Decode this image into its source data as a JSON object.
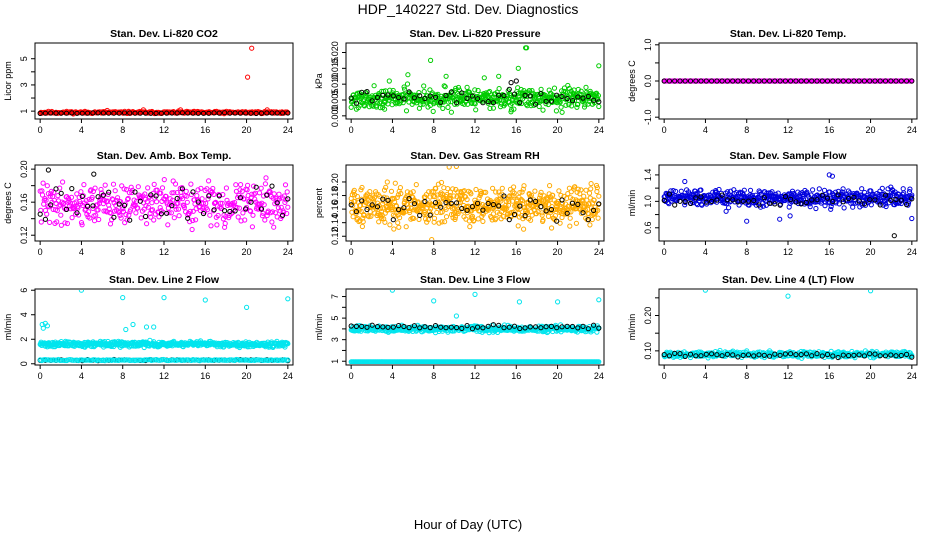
{
  "page": {
    "title": "HDP_140227  Std. Dev. Diagnostics",
    "x_axis_title": "Hour of Day (UTC)"
  },
  "chart_data": [
    {
      "id": "co2",
      "type": "scatter",
      "title": "Stan. Dev. Li-820 CO2",
      "ylabel": "Licor ppm",
      "xlim": [
        -0.5,
        24.5
      ],
      "ylim": [
        0.4,
        6.2
      ],
      "xticks": [
        0,
        4,
        8,
        12,
        16,
        20,
        24
      ],
      "yticks": [
        1,
        2,
        3,
        4,
        5
      ],
      "ytick_labels": [
        "1",
        "",
        "3",
        "",
        "5"
      ],
      "series": [
        {
          "color": "#ff0000",
          "gen": {
            "n": 300,
            "kind": "band",
            "center": 0.9,
            "spread": 0.06,
            "seed": 11
          },
          "points": [
            [
              20.1,
              3.6
            ],
            [
              20.5,
              5.8
            ],
            [
              10.0,
              1.1
            ],
            [
              13.6,
              1.1
            ],
            [
              6.5,
              1.05
            ],
            [
              22.0,
              1.1
            ]
          ]
        },
        {
          "color": "#000000",
          "gen": {
            "n": 48,
            "kind": "band",
            "center": 0.85,
            "spread": 0.02,
            "seed": 12
          },
          "points": []
        }
      ]
    },
    {
      "id": "pressure",
      "type": "scatter",
      "title": "Stan. Dev. Li-820 Pressure",
      "ylabel": "kPa",
      "xlim": [
        -0.5,
        24.5
      ],
      "ylim": [
        -0.001,
        0.023
      ],
      "xticks": [
        0,
        4,
        8,
        12,
        16,
        20,
        24
      ],
      "yticks": [
        0.0,
        0.005,
        0.01,
        0.015,
        0.02
      ],
      "ytick_labels": [
        "0.000",
        "0.005",
        "0.010",
        "0.015",
        "0.020"
      ],
      "series": [
        {
          "color": "#00cc00",
          "gen": {
            "n": 520,
            "kind": "band",
            "center": 0.0055,
            "spread": 0.0024,
            "seed": 21
          },
          "points": [
            [
              7.7,
              0.0175
            ],
            [
              9.2,
              0.0125
            ],
            [
              14.3,
              0.0125
            ],
            [
              16.2,
              0.015
            ],
            [
              16.9,
              0.0215
            ],
            [
              17.0,
              0.0215
            ],
            [
              24.0,
              0.0158
            ],
            [
              5.5,
              0.013
            ],
            [
              3.7,
              0.011
            ],
            [
              12.9,
              0.012
            ]
          ]
        },
        {
          "color": "#000000",
          "gen": {
            "n": 48,
            "kind": "band",
            "center": 0.0058,
            "spread": 0.0015,
            "seed": 22
          },
          "points": [
            [
              16.0,
              0.011
            ],
            [
              15.5,
              0.0105
            ]
          ]
        }
      ]
    },
    {
      "id": "licor_temp",
      "type": "scatter",
      "title": "Stan. Dev. Li-820 Temp.",
      "ylabel": "degrees C",
      "xlim": [
        -0.5,
        24.5
      ],
      "ylim": [
        -1.05,
        1.05
      ],
      "xticks": [
        0,
        4,
        8,
        12,
        16,
        20,
        24
      ],
      "yticks": [
        -1.0,
        -0.5,
        0.0,
        0.5,
        1.0
      ],
      "ytick_labels": [
        "-1.0",
        "",
        "0.0",
        "",
        "1.0"
      ],
      "series": [
        {
          "color": "#ff00ff",
          "gen": {
            "n": 300,
            "kind": "band",
            "center": 0.0,
            "spread": 0.0,
            "seed": 31
          },
          "points": []
        },
        {
          "color": "#000000",
          "gen": {
            "n": 48,
            "kind": "band",
            "center": 0.0,
            "spread": 0.0,
            "seed": 32
          },
          "points": []
        }
      ]
    },
    {
      "id": "box_temp",
      "type": "scatter",
      "title": "Stan. Dev. Amb. Box Temp.",
      "ylabel": "degrees C",
      "xlim": [
        -0.5,
        24.5
      ],
      "ylim": [
        0.113,
        0.205
      ],
      "xticks": [
        0,
        4,
        8,
        12,
        16,
        20,
        24
      ],
      "yticks": [
        0.12,
        0.14,
        0.16,
        0.18,
        0.2
      ],
      "ytick_labels": [
        "0.12",
        "",
        "0.16",
        "",
        "0.20"
      ],
      "series": [
        {
          "color": "#ff00ff",
          "gen": {
            "n": 420,
            "kind": "band",
            "center": 0.158,
            "spread": 0.018,
            "seed": 41
          },
          "points": []
        },
        {
          "color": "#000000",
          "gen": {
            "n": 48,
            "kind": "band",
            "center": 0.158,
            "spread": 0.016,
            "seed": 42
          },
          "points": [
            [
              0.8,
              0.199
            ],
            [
              5.2,
              0.194
            ]
          ]
        }
      ]
    },
    {
      "id": "gas_rh",
      "type": "scatter",
      "title": "Stan. Dev. Gas Stream RH",
      "ylabel": "percent",
      "xlim": [
        -0.5,
        24.5
      ],
      "ylim": [
        0.113,
        0.225
      ],
      "xticks": [
        0,
        4,
        8,
        12,
        16,
        20,
        24
      ],
      "yticks": [
        0.12,
        0.14,
        0.16,
        0.18,
        0.2
      ],
      "ytick_labels": [
        "0.12",
        "0.14",
        "0.16",
        "0.18",
        "0.20"
      ],
      "series": [
        {
          "color": "#ffaa00",
          "gen": {
            "n": 640,
            "kind": "band",
            "center": 0.165,
            "spread": 0.02,
            "seed": 51
          },
          "points": [
            [
              9.5,
              0.222
            ],
            [
              10.2,
              0.223
            ],
            [
              7.8,
              0.115
            ],
            [
              3.5,
              0.2
            ]
          ]
        },
        {
          "color": "#000000",
          "gen": {
            "n": 48,
            "kind": "band",
            "center": 0.163,
            "spread": 0.014,
            "seed": 52
          },
          "points": []
        }
      ]
    },
    {
      "id": "sample_flow",
      "type": "scatter",
      "title": "Stan. Dev. Sample Flow",
      "ylabel": "ml/min",
      "xlim": [
        -0.5,
        24.5
      ],
      "ylim": [
        0.4,
        1.55
      ],
      "xticks": [
        0,
        4,
        8,
        12,
        16,
        20,
        24
      ],
      "yticks": [
        0.6,
        0.8,
        1.0,
        1.2,
        1.4
      ],
      "ytick_labels": [
        "0.6",
        "",
        "1.0",
        "",
        "1.4"
      ],
      "series": [
        {
          "color": "#0000dd",
          "gen": {
            "n": 520,
            "kind": "band",
            "center": 1.05,
            "spread": 0.09,
            "seed": 61
          },
          "points": [
            [
              11.2,
              0.73
            ],
            [
              12.2,
              0.78
            ],
            [
              8.0,
              0.7
            ],
            [
              16.0,
              1.4
            ],
            [
              16.3,
              1.38
            ],
            [
              24.0,
              0.74
            ],
            [
              2.0,
              1.3
            ],
            [
              6.0,
              0.85
            ]
          ]
        },
        {
          "color": "#000000",
          "gen": {
            "n": 48,
            "kind": "band",
            "center": 1.02,
            "spread": 0.06,
            "seed": 62
          },
          "points": [
            [
              22.3,
              0.48
            ]
          ]
        }
      ]
    },
    {
      "id": "line2_flow",
      "type": "scatter",
      "title": "Stan. Dev. Line 2 Flow",
      "ylabel": "ml/min",
      "xlim": [
        -0.5,
        24.5
      ],
      "ylim": [
        -0.1,
        6.1
      ],
      "xticks": [
        0,
        4,
        8,
        12,
        16,
        20,
        24
      ],
      "yticks": [
        0,
        2,
        4,
        6
      ],
      "ytick_labels": [
        "0",
        "2",
        "4",
        "6"
      ],
      "series": [
        {
          "color": "#00e5ee",
          "gen": {
            "n": 520,
            "kind": "band",
            "center": 1.6,
            "spread": 0.16,
            "seed": 71
          },
          "points": [
            [
              0.2,
              3.2
            ],
            [
              0.5,
              3.3
            ],
            [
              0.7,
              3.1
            ],
            [
              0.3,
              2.9
            ],
            [
              4.0,
              6.0
            ],
            [
              8.0,
              5.4
            ],
            [
              8.3,
              2.8
            ],
            [
              9.0,
              3.2
            ],
            [
              10.3,
              3.0
            ],
            [
              11.0,
              3.0
            ],
            [
              12.0,
              5.4
            ],
            [
              16.0,
              5.2
            ],
            [
              20.0,
              4.6
            ],
            [
              24.0,
              5.3
            ]
          ]
        },
        {
          "color": "#000000",
          "gen": {
            "n": 48,
            "kind": "band",
            "center": 0.3,
            "spread": 0.04,
            "seed": 72
          },
          "points": []
        },
        {
          "color": "#00e5ee",
          "gen": {
            "n": 150,
            "kind": "band",
            "center": 0.3,
            "spread": 0.03,
            "seed": 73
          },
          "points": []
        }
      ]
    },
    {
      "id": "line3_flow",
      "type": "scatter",
      "title": "Stan. Dev. Line 3 Flow",
      "ylabel": "ml/min",
      "xlim": [
        -0.5,
        24.5
      ],
      "ylim": [
        0.65,
        7.7
      ],
      "xticks": [
        0,
        4,
        8,
        12,
        16,
        20,
        24
      ],
      "yticks": [
        1,
        2,
        3,
        4,
        5,
        6,
        7
      ],
      "ytick_labels": [
        "1",
        "",
        "3",
        "",
        "5",
        "",
        "7"
      ],
      "series": [
        {
          "color": "#00e5ee",
          "gen": {
            "n": 500,
            "kind": "band",
            "center": 4.0,
            "spread": 0.22,
            "seed": 81
          },
          "points": [
            [
              4.0,
              7.6
            ],
            [
              8.0,
              6.6
            ],
            [
              10.2,
              5.2
            ],
            [
              12.0,
              7.2
            ],
            [
              16.3,
              6.5
            ],
            [
              20.0,
              6.5
            ],
            [
              24.0,
              6.7
            ]
          ]
        },
        {
          "color": "#000000",
          "gen": {
            "n": 48,
            "kind": "band",
            "center": 4.2,
            "spread": 0.12,
            "seed": 82
          },
          "points": []
        },
        {
          "color": "#00e5ee",
          "gen": {
            "n": 260,
            "kind": "band",
            "center": 0.95,
            "spread": 0.0,
            "seed": 83
          },
          "points": []
        }
      ]
    },
    {
      "id": "line4_flow",
      "type": "scatter",
      "title": "Stan. Dev. Line 4 (LT) Flow",
      "ylabel": "ml/min",
      "xlim": [
        -0.5,
        24.5
      ],
      "ylim": [
        0.06,
        0.275
      ],
      "xticks": [
        0,
        4,
        8,
        12,
        16,
        20,
        24
      ],
      "yticks": [
        0.1,
        0.15,
        0.2,
        0.25
      ],
      "ytick_labels": [
        "0.10",
        "",
        "0.20",
        ""
      ],
      "series": [
        {
          "color": "#00e5ee",
          "gen": {
            "n": 480,
            "kind": "band",
            "center": 0.09,
            "spread": 0.006,
            "seed": 91
          },
          "points": [
            [
              4.0,
              0.272
            ],
            [
              12.0,
              0.255
            ],
            [
              20.0,
              0.27
            ],
            [
              8.0,
              0.1
            ],
            [
              19.5,
              0.1
            ]
          ]
        },
        {
          "color": "#000000",
          "gen": {
            "n": 48,
            "kind": "band",
            "center": 0.088,
            "spread": 0.005,
            "seed": 92
          },
          "points": []
        }
      ]
    }
  ]
}
